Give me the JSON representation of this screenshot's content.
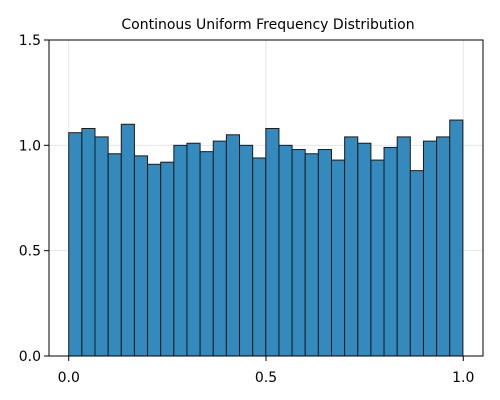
{
  "chart_data": {
    "type": "bar",
    "title": "Continous Uniform Frequency Distribution",
    "xlabel": "",
    "ylabel": "",
    "xlim": [
      -0.05,
      1.05
    ],
    "ylim": [
      0.0,
      1.5
    ],
    "bin_start": 0.0,
    "bin_width": 0.0333,
    "values": [
      1.06,
      1.08,
      1.04,
      0.96,
      1.1,
      0.95,
      0.91,
      0.92,
      1.0,
      1.01,
      0.97,
      1.02,
      1.05,
      1.0,
      0.94,
      1.08,
      1.0,
      0.98,
      0.96,
      0.98,
      0.93,
      1.04,
      1.01,
      0.93,
      0.99,
      1.04,
      0.88,
      1.02,
      1.04,
      1.12
    ],
    "xticks": [
      0.0,
      0.5,
      1.0
    ],
    "xtick_labels": [
      "0.0",
      "0.5",
      "1.0"
    ],
    "yticks": [
      0.0,
      0.5,
      1.0,
      1.5
    ],
    "ytick_labels": [
      "0.0",
      "0.5",
      "1.0",
      "1.5"
    ],
    "grid": true,
    "legend": "none",
    "bar_color": "#348abd",
    "bar_edge_color": "#1a1a1a",
    "grid_color": "#e6e6e6",
    "axis_color": "#000000"
  }
}
